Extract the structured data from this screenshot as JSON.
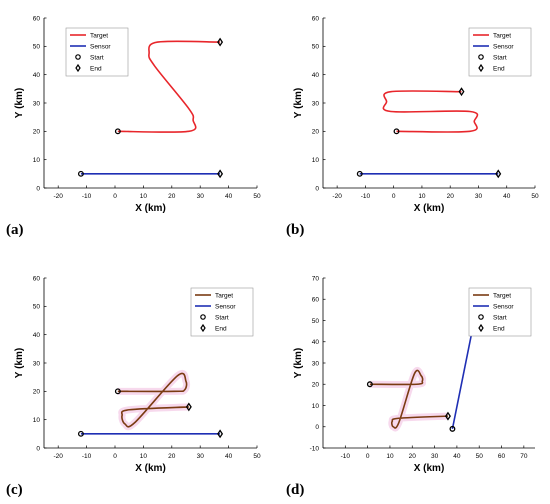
{
  "figure": {
    "panel_labels": [
      "(a)",
      "(b)",
      "(c)",
      "(d)"
    ]
  },
  "chart_data": [
    {
      "type": "line",
      "panel_label": "(a)",
      "xlabel": "X (km)",
      "ylabel": "Y (km)",
      "xlim": [
        -25,
        50
      ],
      "ylim": [
        0,
        60
      ],
      "xticks": [
        -20,
        -10,
        0,
        10,
        20,
        30,
        40,
        50
      ],
      "yticks": [
        0,
        10,
        20,
        30,
        40,
        50,
        60
      ],
      "legend": {
        "placement": "top-left",
        "entries": [
          "Target",
          "Sensor",
          "Start",
          "End"
        ]
      },
      "series": [
        {
          "name": "Target",
          "color": "#e8262b",
          "x": [
            1,
            26,
            27.5,
            26,
            14,
            12,
            15,
            37
          ],
          "y": [
            20,
            20,
            24,
            28,
            43,
            47.5,
            51.5,
            51.5
          ],
          "start": [
            1,
            20
          ],
          "end": [
            37,
            51.5
          ]
        },
        {
          "name": "Sensor",
          "color": "#1f2fb4",
          "x": [
            -12,
            37
          ],
          "y": [
            5,
            5
          ],
          "start": [
            -12,
            5
          ],
          "end": [
            37,
            5
          ]
        }
      ]
    },
    {
      "type": "line",
      "panel_label": "(b)",
      "xlabel": "X (km)",
      "ylabel": "Y (km)",
      "xlim": [
        -25,
        50
      ],
      "ylim": [
        0,
        60
      ],
      "xticks": [
        -20,
        -10,
        0,
        10,
        20,
        30,
        40,
        50
      ],
      "yticks": [
        0,
        10,
        20,
        30,
        40,
        50,
        60
      ],
      "legend": {
        "placement": "top-right",
        "entries": [
          "Target",
          "Sensor",
          "Start",
          "End"
        ]
      },
      "series": [
        {
          "name": "Target",
          "color": "#e8262b",
          "x": [
            1,
            27,
            28.5,
            27,
            -1,
            -2.5,
            -1,
            24
          ],
          "y": [
            20,
            20,
            23.5,
            27,
            27,
            30.5,
            34,
            34
          ],
          "start": [
            1,
            20
          ],
          "end": [
            24,
            34
          ]
        },
        {
          "name": "Sensor",
          "color": "#1f2fb4",
          "x": [
            -12,
            37
          ],
          "y": [
            5,
            5
          ],
          "start": [
            -12,
            5
          ],
          "end": [
            37,
            5
          ]
        }
      ]
    },
    {
      "type": "line",
      "panel_label": "(c)",
      "xlabel": "X (km)",
      "ylabel": "Y (km)",
      "xlim": [
        -25,
        50
      ],
      "ylim": [
        0,
        60
      ],
      "xticks": [
        -20,
        -10,
        0,
        10,
        20,
        30,
        40,
        50
      ],
      "yticks": [
        0,
        10,
        20,
        30,
        40,
        50,
        60
      ],
      "legend": {
        "placement": "top-right",
        "entries": [
          "Target",
          "Sensor",
          "Start",
          "End"
        ]
      },
      "series": [
        {
          "name": "Target",
          "color": "#7a3b12",
          "x": [
            1,
            21,
            24.5,
            25,
            22,
            7,
            3.5,
            2.5,
            5,
            26
          ],
          "y": [
            20,
            20,
            20.5,
            23.5,
            25.5,
            9,
            8.5,
            11.5,
            13.5,
            14.5
          ],
          "start": [
            1,
            20
          ],
          "end": [
            26,
            14.5
          ]
        },
        {
          "name": "Sensor",
          "color": "#1f2fb4",
          "x": [
            -12,
            37
          ],
          "y": [
            5,
            5
          ],
          "start": [
            -12,
            5
          ],
          "end": [
            37,
            5
          ]
        }
      ]
    },
    {
      "type": "line",
      "panel_label": "(d)",
      "xlabel": "X (km)",
      "ylabel": "Y (km)",
      "xlim": [
        -20,
        75
      ],
      "ylim": [
        -10,
        70
      ],
      "xticks": [
        -10,
        0,
        10,
        20,
        30,
        40,
        50,
        60,
        70
      ],
      "yticks": [
        -10,
        0,
        10,
        20,
        30,
        40,
        50,
        60,
        70
      ],
      "legend": {
        "placement": "top-right",
        "entries": [
          "Target",
          "Sensor",
          "Start",
          "End"
        ]
      },
      "series": [
        {
          "name": "Target",
          "color": "#7a3b12",
          "x": [
            1,
            22,
            24.5,
            24,
            21,
            14,
            11.5,
            11,
            14,
            36
          ],
          "y": [
            20,
            20,
            21.5,
            24,
            25,
            2,
            0,
            2.5,
            4,
            5
          ],
          "start": [
            1,
            20
          ],
          "end": [
            36,
            5
          ]
        },
        {
          "name": "Sensor",
          "color": "#1f2fb4",
          "x": [
            38,
            47
          ],
          "y": [
            -1,
            46
          ],
          "start": [
            38,
            -1
          ],
          "end": [
            47,
            46
          ]
        }
      ]
    }
  ]
}
